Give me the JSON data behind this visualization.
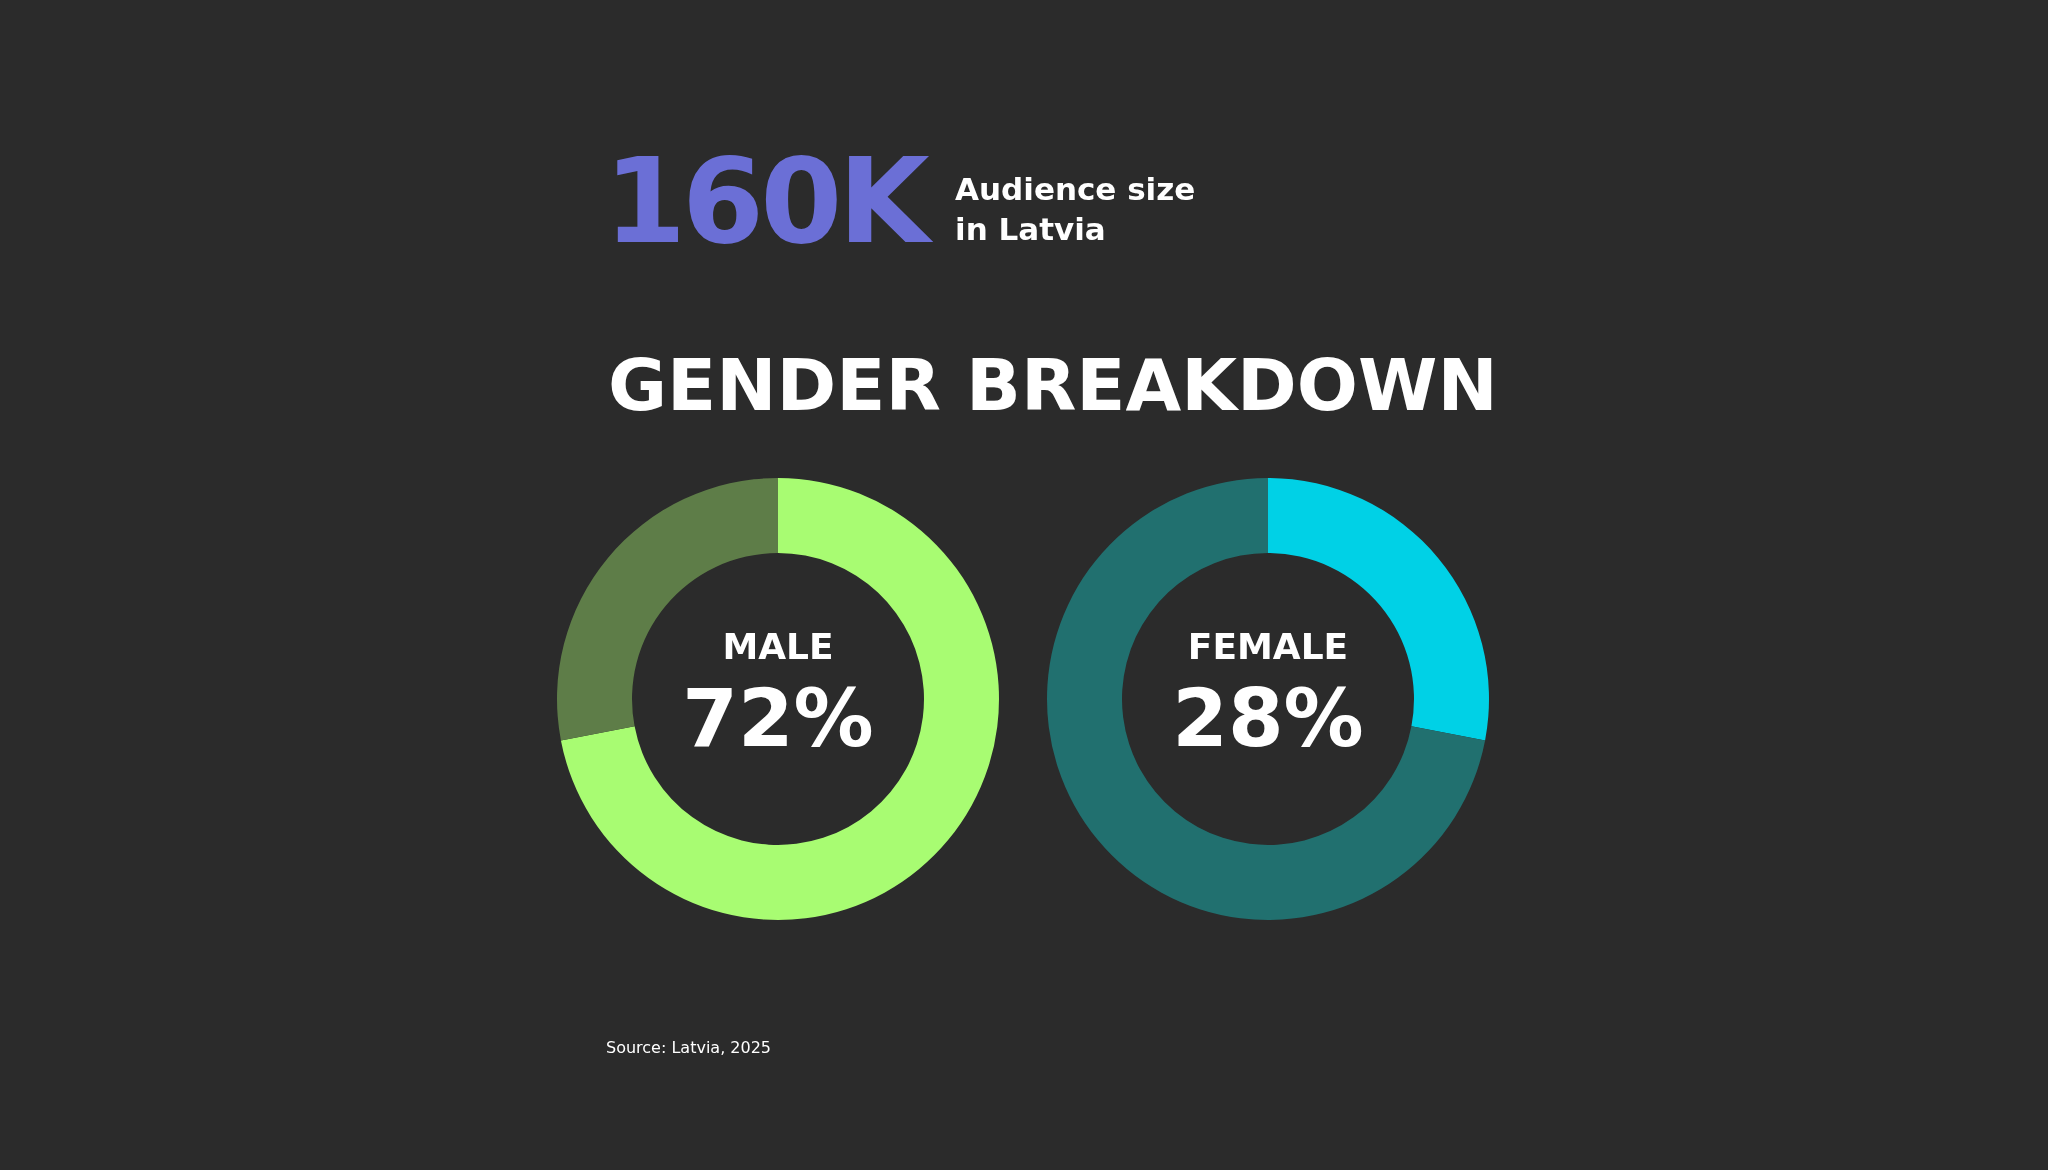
{
  "chart_data": [
    {
      "type": "other",
      "title": "160K",
      "subtitle": "Audience size\nin Latvia"
    },
    {
      "type": "donut",
      "title": "GENDER BREAKDOWN",
      "categories": [
        "MALE",
        null
      ],
      "values": [
        72,
        28
      ],
      "colors": [
        "#a8fc72",
        "#5e7d48"
      ],
      "value_labels": [
        "72%",
        null
      ]
    },
    {
      "type": "donut",
      "categories": [
        "FEMALE",
        null
      ],
      "values": [
        28,
        72
      ],
      "colors": [
        "#00d1e6",
        "#21706f"
      ],
      "value_labels": [
        "28%",
        null
      ],
      "annotations": [
        "Source: Latvia, 2025"
      ]
    }
  ]
}
